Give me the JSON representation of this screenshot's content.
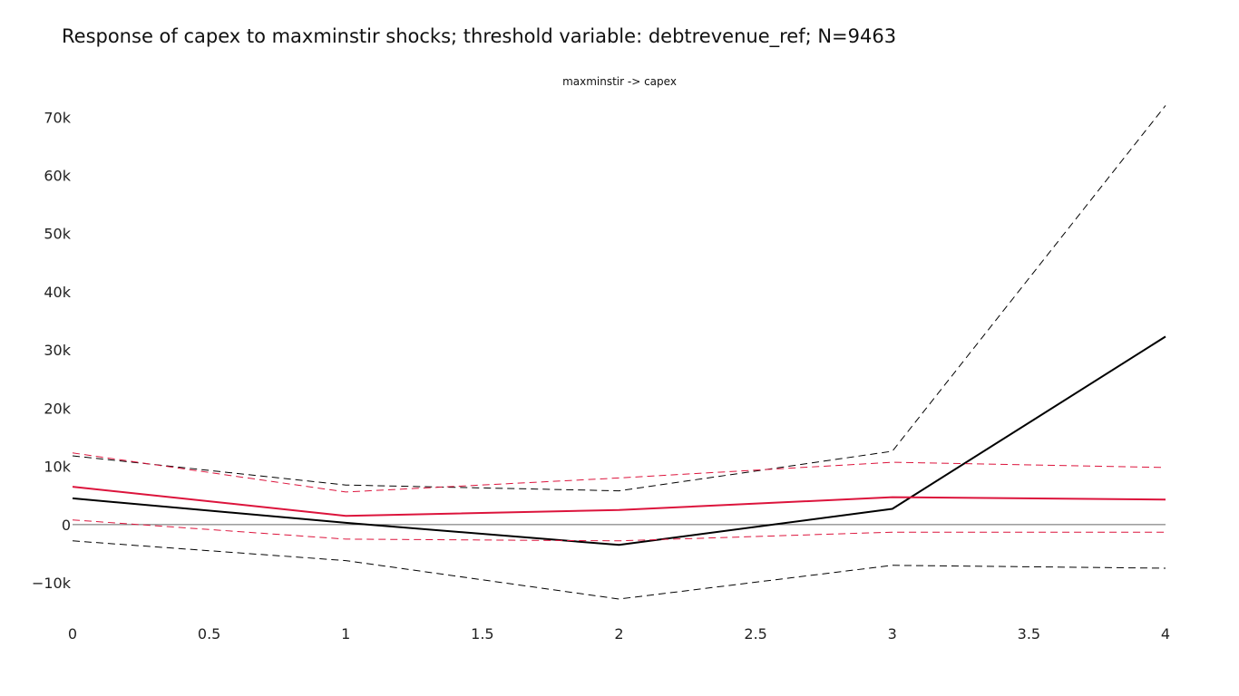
{
  "chart_data": {
    "type": "line",
    "title": "Response of capex to maxminstir shocks; threshold variable: debtrevenue_ref; N=9463",
    "subtitle": "maxminstir -> capex",
    "xlabel": "",
    "ylabel": "",
    "x": [
      0,
      1,
      2,
      3,
      4
    ],
    "xlim": [
      0,
      4
    ],
    "ylim": [
      -17000,
      73000
    ],
    "x_ticks": [
      0,
      0.5,
      1,
      1.5,
      2,
      2.5,
      3,
      3.5,
      4
    ],
    "x_tick_labels": [
      "0",
      "0.5",
      "1",
      "1.5",
      "2",
      "2.5",
      "3",
      "3.5",
      "4"
    ],
    "y_ticks": [
      -10000,
      0,
      10000,
      20000,
      30000,
      40000,
      50000,
      60000,
      70000
    ],
    "y_tick_labels": [
      "−10k",
      "0",
      "10k",
      "20k",
      "30k",
      "40k",
      "50k",
      "60k",
      "70k"
    ],
    "zero_line": true,
    "grid": false,
    "legend": "none",
    "series": [
      {
        "values": [
          4500,
          300,
          -3500,
          2700,
          32300
        ],
        "color": "#000000",
        "dash": "solid"
      },
      {
        "values": [
          11800,
          6800,
          5800,
          12600,
          72000
        ],
        "color": "#000000",
        "dash": "dashed"
      },
      {
        "values": [
          -2800,
          -6200,
          -12800,
          -7000,
          -7500
        ],
        "color": "#000000",
        "dash": "dashed"
      },
      {
        "values": [
          6500,
          1500,
          2500,
          4700,
          4300
        ],
        "color": "#dc143c",
        "dash": "solid"
      },
      {
        "values": [
          12300,
          5600,
          8000,
          10700,
          9800
        ],
        "color": "#dc143c",
        "dash": "dashed"
      },
      {
        "values": [
          800,
          -2500,
          -2800,
          -1300,
          -1300
        ],
        "color": "#dc143c",
        "dash": "dashed"
      }
    ]
  }
}
